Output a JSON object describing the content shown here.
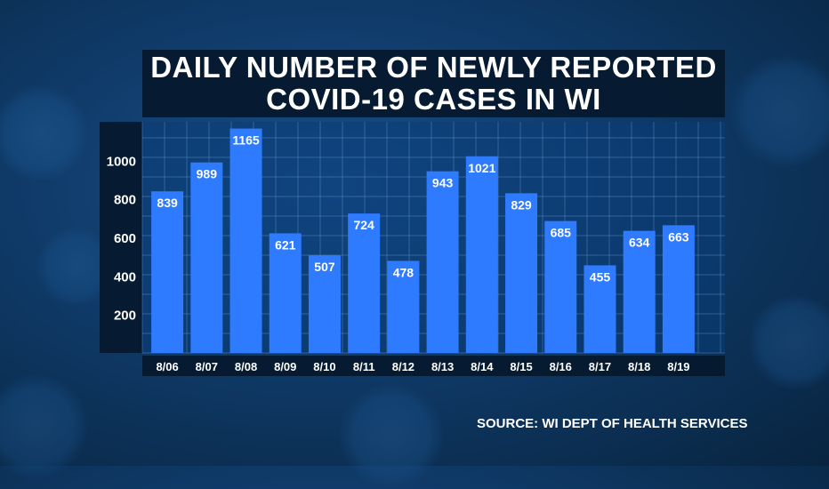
{
  "chart_data": {
    "type": "bar",
    "title_lines": [
      "DAILY NUMBER OF NEWLY REPORTED",
      "COVID-19 CASES IN WI"
    ],
    "categories": [
      "8/06",
      "8/07",
      "8/08",
      "8/09",
      "8/10",
      "8/11",
      "8/12",
      "8/13",
      "8/14",
      "8/15",
      "8/16",
      "8/17",
      "8/18",
      "8/19"
    ],
    "values": [
      839,
      989,
      1165,
      621,
      507,
      724,
      478,
      943,
      1021,
      829,
      685,
      455,
      634,
      663
    ],
    "yticks": [
      200,
      400,
      600,
      800,
      1000
    ],
    "ylim": [
      0,
      1200
    ],
    "xlabel": "",
    "ylabel": "",
    "grid": true,
    "bar_color": "#2f7bff"
  },
  "source": "SOURCE: WI DEPT OF HEALTH SERVICES"
}
